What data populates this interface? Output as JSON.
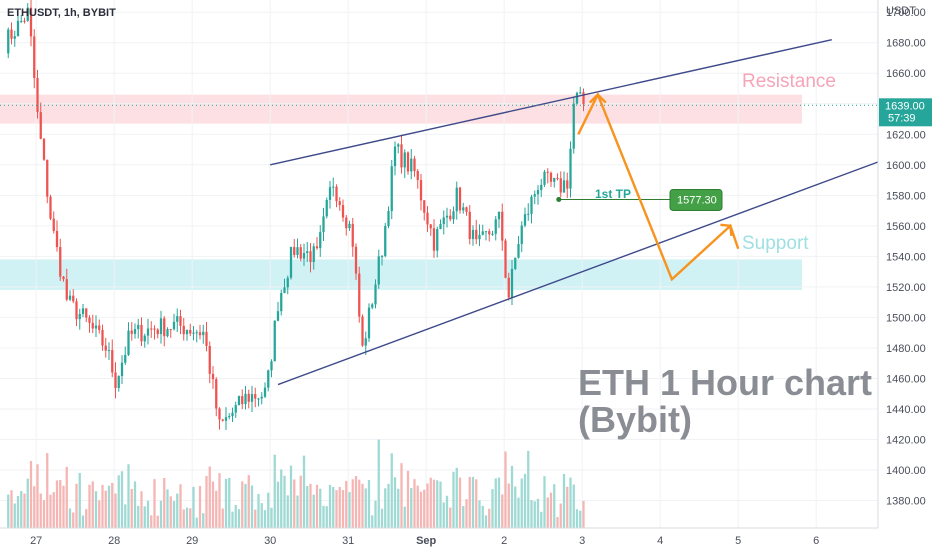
{
  "symbol_label": "ETHUSDT, 1h, BYBIT",
  "chart_data": {
    "type": "candlestick",
    "symbol": "ETHUSDT",
    "timeframe": "1h",
    "exchange": "BYBIT",
    "currency": "USDT",
    "y_range": [
      1362,
      1708
    ],
    "y_ticks": [
      1380,
      1400,
      1420,
      1440,
      1460,
      1480,
      1500,
      1520,
      1540,
      1560,
      1580,
      1600,
      1620,
      1640,
      1660,
      1680,
      1700
    ],
    "y_tick_labels": [
      "1380.00",
      "1400.00",
      "1420.00",
      "1440.00",
      "1460.00",
      "1480.00",
      "1500.00",
      "1520.00",
      "1540.00",
      "1560.00",
      "1580.00",
      "1600.00",
      "1620.00",
      "1640.00",
      "1660.00",
      "1680.00",
      "1700.00"
    ],
    "x_range_days": [
      0,
      10.2
    ],
    "x_ticks": [
      {
        "day": 0.4,
        "label": "27"
      },
      {
        "day": 1.4,
        "label": "28"
      },
      {
        "day": 2.4,
        "label": "29"
      },
      {
        "day": 3.4,
        "label": "30"
      },
      {
        "day": 4.4,
        "label": "31"
      },
      {
        "day": 5.4,
        "label": "Sep"
      },
      {
        "day": 6.4,
        "label": "2"
      },
      {
        "day": 7.4,
        "label": "3"
      },
      {
        "day": 8.4,
        "label": "4"
      },
      {
        "day": 9.4,
        "label": "5"
      },
      {
        "day": 10.4,
        "label": "6"
      }
    ],
    "anchors": [
      {
        "day": 0.0,
        "price": 1680
      },
      {
        "day": 0.3,
        "price": 1700
      },
      {
        "day": 0.42,
        "price": 1630
      },
      {
        "day": 0.6,
        "price": 1560
      },
      {
        "day": 0.8,
        "price": 1510
      },
      {
        "day": 1.0,
        "price": 1500
      },
      {
        "day": 1.3,
        "price": 1480
      },
      {
        "day": 1.42,
        "price": 1458
      },
      {
        "day": 1.6,
        "price": 1488
      },
      {
        "day": 1.9,
        "price": 1493
      },
      {
        "day": 2.2,
        "price": 1495
      },
      {
        "day": 2.55,
        "price": 1490
      },
      {
        "day": 2.75,
        "price": 1428
      },
      {
        "day": 3.1,
        "price": 1448
      },
      {
        "day": 3.35,
        "price": 1450
      },
      {
        "day": 3.5,
        "price": 1510
      },
      {
        "day": 3.7,
        "price": 1545
      },
      {
        "day": 4.0,
        "price": 1540
      },
      {
        "day": 4.2,
        "price": 1590
      },
      {
        "day": 4.45,
        "price": 1555
      },
      {
        "day": 4.58,
        "price": 1478
      },
      {
        "day": 4.85,
        "price": 1550
      },
      {
        "day": 5.0,
        "price": 1610
      },
      {
        "day": 5.25,
        "price": 1595
      },
      {
        "day": 5.5,
        "price": 1550
      },
      {
        "day": 5.8,
        "price": 1580
      },
      {
        "day": 6.05,
        "price": 1545
      },
      {
        "day": 6.35,
        "price": 1565
      },
      {
        "day": 6.45,
        "price": 1512
      },
      {
        "day": 6.6,
        "price": 1555
      },
      {
        "day": 6.85,
        "price": 1590
      },
      {
        "day": 7.1,
        "price": 1585
      },
      {
        "day": 7.22,
        "price": 1590
      },
      {
        "day": 7.3,
        "price": 1645
      },
      {
        "day": 7.4,
        "price": 1640
      }
    ],
    "resistance_zone": [
      1627,
      1646
    ],
    "support_zone": [
      1518,
      1538
    ],
    "current_price": 1639.0,
    "current_price_label": "1639.00",
    "countdown_label": "57:39",
    "target_price": 1577.3,
    "target_label": "1577.30",
    "target_text": "1st TP",
    "resistance_text": "Resistance",
    "support_text": "Support",
    "title_line1": "ETH 1 Hour chart",
    "title_line2": "(Bybit)",
    "channel_upper": [
      {
        "day": 3.4,
        "price": 1600
      },
      {
        "day": 10.6,
        "price": 1682
      }
    ],
    "channel_lower": [
      {
        "day": 3.5,
        "price": 1456
      },
      {
        "day": 11.2,
        "price": 1602
      }
    ],
    "projection_path": [
      {
        "day": 7.35,
        "price": 1620
      },
      {
        "day": 7.6,
        "price": 1646
      },
      {
        "day": 8.55,
        "price": 1525
      },
      {
        "day": 9.3,
        "price": 1560
      },
      {
        "day": 9.4,
        "price": 1545
      }
    ]
  }
}
